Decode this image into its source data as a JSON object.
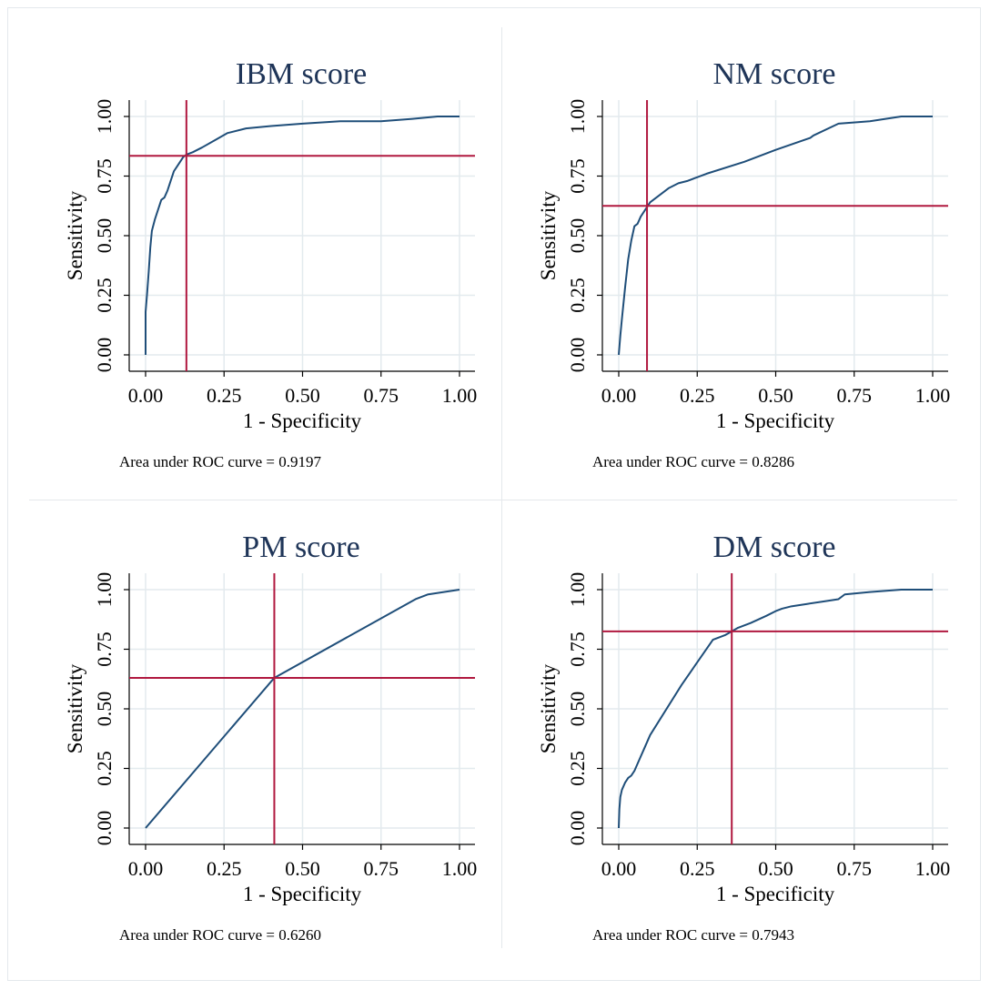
{
  "chart_data": [
    {
      "type": "line",
      "title": "IBM score",
      "xlabel": "1 - Specificity",
      "ylabel": "Sensitivity",
      "xlim": [
        0,
        1
      ],
      "ylim": [
        0,
        1
      ],
      "xticks": [
        "0.00",
        "0.25",
        "0.50",
        "0.75",
        "1.00"
      ],
      "yticks": [
        "0.00",
        "0.25",
        "0.50",
        "0.75",
        "1.00"
      ],
      "grid": true,
      "note": "Area under ROC curve = 0.9197",
      "cutoff": {
        "x": 0.13,
        "y": 0.835
      },
      "x": [
        0,
        0,
        0.005,
        0.01,
        0.015,
        0.02,
        0.03,
        0.04,
        0.05,
        0.06,
        0.07,
        0.08,
        0.09,
        0.1,
        0.11,
        0.12,
        0.13,
        0.15,
        0.18,
        0.22,
        0.26,
        0.32,
        0.4,
        0.5,
        0.62,
        0.75,
        0.85,
        0.93,
        1.0
      ],
      "y": [
        0,
        0.18,
        0.26,
        0.35,
        0.45,
        0.52,
        0.57,
        0.61,
        0.65,
        0.66,
        0.69,
        0.73,
        0.77,
        0.79,
        0.81,
        0.83,
        0.84,
        0.85,
        0.87,
        0.9,
        0.93,
        0.95,
        0.96,
        0.97,
        0.98,
        0.98,
        0.99,
        1.0,
        1.0
      ]
    },
    {
      "type": "line",
      "title": "NM score",
      "xlabel": "1 - Specificity",
      "ylabel": "Sensitivity",
      "xlim": [
        0,
        1
      ],
      "ylim": [
        0,
        1
      ],
      "xticks": [
        "0.00",
        "0.25",
        "0.50",
        "0.75",
        "1.00"
      ],
      "yticks": [
        "0.00",
        "0.25",
        "0.50",
        "0.75",
        "1.00"
      ],
      "grid": true,
      "note": "Area under ROC curve = 0.8286",
      "cutoff": {
        "x": 0.09,
        "y": 0.625
      },
      "x": [
        0,
        0.005,
        0.01,
        0.02,
        0.03,
        0.04,
        0.05,
        0.06,
        0.07,
        0.08,
        0.09,
        0.1,
        0.13,
        0.16,
        0.19,
        0.22,
        0.24,
        0.28,
        0.4,
        0.5,
        0.61,
        0.62,
        0.7,
        0.8,
        0.9,
        1.0
      ],
      "y": [
        0,
        0.08,
        0.15,
        0.28,
        0.4,
        0.48,
        0.54,
        0.55,
        0.58,
        0.6,
        0.62,
        0.64,
        0.67,
        0.7,
        0.72,
        0.73,
        0.74,
        0.76,
        0.81,
        0.86,
        0.91,
        0.92,
        0.97,
        0.98,
        1.0,
        1.0
      ]
    },
    {
      "type": "line",
      "title": "PM score",
      "xlabel": "1 - Specificity",
      "ylabel": "Sensitivity",
      "xlim": [
        0,
        1
      ],
      "ylim": [
        0,
        1
      ],
      "xticks": [
        "0.00",
        "0.25",
        "0.50",
        "0.75",
        "1.00"
      ],
      "yticks": [
        "0.00",
        "0.25",
        "0.50",
        "0.75",
        "1.00"
      ],
      "grid": true,
      "note": "Area under ROC curve = 0.6260",
      "cutoff": {
        "x": 0.41,
        "y": 0.63
      },
      "x": [
        0,
        0.41,
        0.86,
        0.9,
        1.0
      ],
      "y": [
        0,
        0.63,
        0.96,
        0.98,
        1.0
      ]
    },
    {
      "type": "line",
      "title": "DM score",
      "xlabel": "1 - Specificity",
      "ylabel": "Sensitivity",
      "xlim": [
        0,
        1
      ],
      "ylim": [
        0,
        1
      ],
      "xticks": [
        "0.00",
        "0.25",
        "0.50",
        "0.75",
        "1.00"
      ],
      "yticks": [
        "0.00",
        "0.25",
        "0.50",
        "0.75",
        "1.00"
      ],
      "grid": true,
      "note": "Area under ROC curve = 0.7943",
      "cutoff": {
        "x": 0.36,
        "y": 0.825
      },
      "x": [
        0,
        0.002,
        0.005,
        0.01,
        0.02,
        0.03,
        0.04,
        0.05,
        0.07,
        0.08,
        0.1,
        0.2,
        0.3,
        0.34,
        0.36,
        0.38,
        0.42,
        0.47,
        0.5,
        0.52,
        0.55,
        0.6,
        0.65,
        0.7,
        0.72,
        0.8,
        0.9,
        1.0
      ],
      "y": [
        0,
        0.08,
        0.13,
        0.16,
        0.19,
        0.21,
        0.22,
        0.24,
        0.3,
        0.33,
        0.39,
        0.6,
        0.79,
        0.81,
        0.825,
        0.84,
        0.86,
        0.89,
        0.91,
        0.92,
        0.93,
        0.94,
        0.95,
        0.96,
        0.98,
        0.99,
        1.0,
        1.0
      ]
    }
  ],
  "colors": {
    "curve": "#1f4e79",
    "cutoff": "#b0183f",
    "grid": "#e3eaee",
    "title": "#1f3558"
  }
}
